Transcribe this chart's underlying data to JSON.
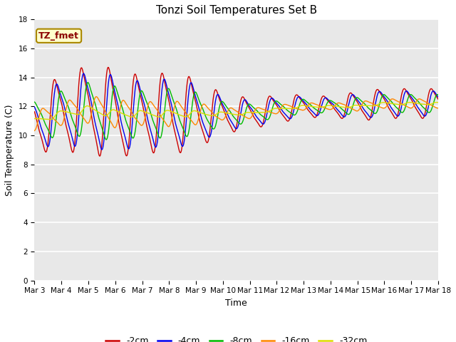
{
  "title": "Tonzi Soil Temperatures Set B",
  "xlabel": "Time",
  "ylabel": "Soil Temperature (C)",
  "ylim": [
    0,
    18
  ],
  "yticks": [
    0,
    2,
    4,
    6,
    8,
    10,
    12,
    14,
    16,
    18
  ],
  "series_colors": {
    "-2cm": "#cc0000",
    "-4cm": "#0000ee",
    "-8cm": "#00bb00",
    "-16cm": "#ff8800",
    "-32cm": "#dddd00"
  },
  "legend_label": "TZ_fmet",
  "legend_box_facecolor": "#ffffcc",
  "legend_box_edgecolor": "#aa8800",
  "fig_facecolor": "#ffffff",
  "ax_facecolor": "#e8e8e8",
  "grid_color": "#ffffff",
  "xtick_labels": [
    "Mar 3",
    "Mar 4",
    "Mar 5",
    "Mar 6",
    "Mar 7",
    "Mar 8",
    "Mar 9",
    "Mar 10",
    "Mar 11",
    "Mar 12",
    "Mar 13",
    "Mar 14",
    "Mar 15",
    "Mar 16",
    "Mar 17",
    "Mar 18"
  ],
  "title_fontsize": 11,
  "axis_label_fontsize": 9,
  "tick_fontsize": 7.5,
  "legend_fontsize": 9
}
